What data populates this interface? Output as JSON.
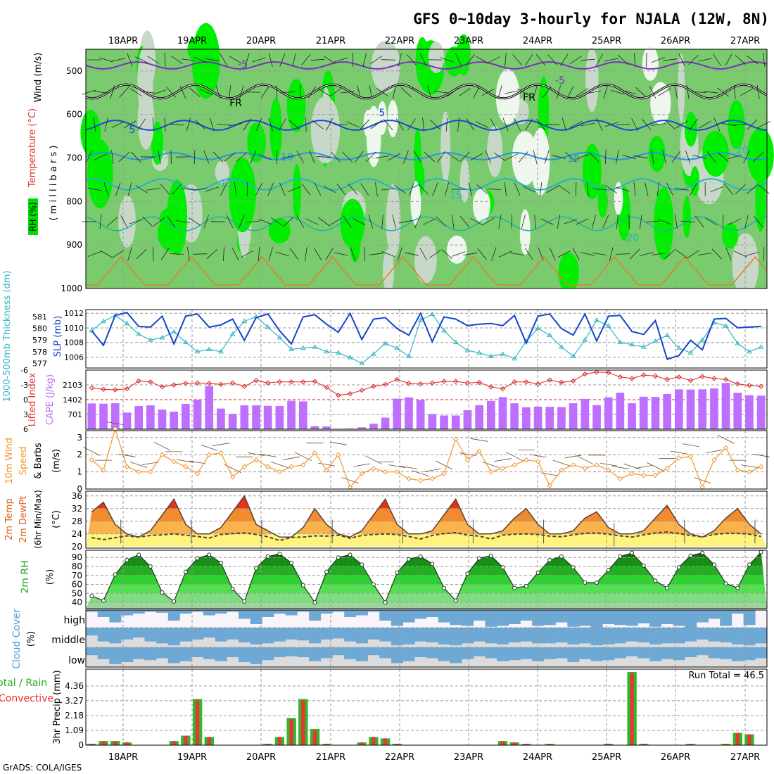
{
  "title": "GFS 0~10day 3-hourly for NJALA (12W, 8N)",
  "credit": "GrADS: COLA/IGES",
  "colors": {
    "grid": "#9a9a9a",
    "rh_light": "#c8d8c8",
    "rh_mid": "#7acb6e",
    "rh_high": "#00ee00",
    "precip_total": "#2db82d",
    "precip_conv": "#ee3333",
    "cloud": "#6ea8d4",
    "cloud_bg": "#dcdcdc",
    "cape": "#bf6fff",
    "li": "#dd2222",
    "slp": "#1446c8",
    "thick": "#33b6c4",
    "wind10": "#f0962a"
  },
  "chart_data": [
    {
      "type": "area",
      "panel": "upper-air",
      "ylabel_lines": [
        "Wind (m/s)",
        "Temperature (°C)",
        "RH (%)"
      ],
      "ylabel2": "( m i l l i b a r s )",
      "dates": [
        "18APR",
        "19APR",
        "20APR",
        "21APR",
        "22APR",
        "23APR",
        "24APR",
        "25APR",
        "26APR",
        "27APR"
      ],
      "y_ticks": [
        "500",
        "600",
        "700",
        "800",
        "900",
        "1000"
      ],
      "ylim": [
        450,
        1000
      ],
      "contour_labels": [
        "-5",
        "-5",
        "FR",
        "FR",
        "5",
        "5",
        "10",
        "10",
        "15",
        "15",
        "20",
        "20"
      ]
    },
    {
      "type": "line",
      "panel": "slp-thickness",
      "ylabel_left": "1000-500mb Thickness (dm)",
      "ylabel_right": "SLP (mb)",
      "left_ticks": [
        "581",
        "580",
        "579",
        "578",
        "577"
      ],
      "right_ticks": [
        "1012",
        "1010",
        "1008",
        "1006"
      ],
      "slp_ylim": [
        1004.5,
        1012.5
      ],
      "thick_ylim": [
        576.6,
        581.6
      ],
      "series": [
        {
          "name": "SLP",
          "values": [
            1009.6,
            1007.6,
            1011.7,
            1012.1,
            1010.2,
            1010.1,
            1011.6,
            1007.8,
            1011.6,
            1011.9,
            1010.1,
            1010.4,
            1011.2,
            1008.3,
            1011.4,
            1011.9,
            1009.6,
            1007.8,
            1011.5,
            1011.8,
            1010.5,
            1009.4,
            1012.0,
            1008.4,
            1011.2,
            1011.4,
            1009.9,
            1009.0,
            1012.0,
            1008.1,
            1011.5,
            1011.2,
            1010.3,
            1010.5,
            1010.6,
            1010.3,
            1011.7,
            1007.9,
            1011.6,
            1011.9,
            1009.9,
            1009.0,
            1011.9,
            1008.2,
            1011.6,
            1011.7,
            1009.5,
            1009.1,
            1011.0,
            1005.7,
            1006.2,
            1008.3,
            1007.0,
            1011.2,
            1011.3,
            1010.0,
            1010.1,
            1010.2
          ]
        },
        {
          "name": "Thickness",
          "values": [
            579.8,
            580.6,
            581.1,
            580.4,
            579.5,
            579.0,
            579.2,
            579.7,
            578.8,
            578.0,
            578.2,
            578.0,
            579.5,
            580.6,
            581.0,
            580.1,
            579.2,
            578.2,
            578.3,
            578.4,
            578.0,
            577.9,
            577.5,
            577.0,
            577.8,
            578.7,
            578.3,
            577.6,
            580.7,
            581.2,
            579.8,
            578.8,
            578.1,
            577.9,
            577.6,
            577.8,
            577.4,
            578.9,
            580.0,
            579.4,
            578.4,
            577.6,
            579.0,
            580.7,
            580.2,
            578.8,
            578.6,
            578.4,
            578.9,
            579.4,
            578.3,
            577.9,
            579.0,
            580.5,
            580.2,
            578.7,
            578.0,
            578.4
          ]
        }
      ]
    },
    {
      "type": "bar",
      "panel": "cape-li",
      "ylabel_left": "Lifted Index",
      "ylabel_right": "CAPE (J/kg)",
      "left_ticks": [
        "-6",
        "-3",
        "0",
        "3",
        "6"
      ],
      "right_ticks": [
        "2103",
        "1402",
        "701"
      ],
      "cape_ylim": [
        0,
        2800
      ],
      "li_ylim": [
        6,
        -6
      ],
      "series": [
        {
          "name": "CAPE",
          "values": [
            1220,
            1210,
            1230,
            790,
            1100,
            1130,
            930,
            830,
            1200,
            1400,
            2040,
            980,
            730,
            1130,
            1130,
            1110,
            1100,
            1350,
            1320,
            140,
            130,
            0,
            30,
            90,
            260,
            550,
            1450,
            1510,
            1380,
            720,
            650,
            650,
            900,
            1140,
            1340,
            1520,
            1230,
            1040,
            1070,
            1060,
            1050,
            1230,
            1440,
            1140,
            1510,
            1730,
            1230,
            1540,
            1530,
            1670,
            1890,
            1880,
            1890,
            1930,
            2190,
            1730,
            1610,
            1590
          ]
        },
        {
          "name": "Lifted Index",
          "values": [
            -2.4,
            -2.1,
            -2.0,
            -2.2,
            -3.8,
            -3.6,
            -2.6,
            -3.0,
            -3.3,
            -3.4,
            -3.3,
            -3.1,
            -3.4,
            -2.7,
            -3.9,
            -3.4,
            -3.6,
            -3.6,
            -3.6,
            -3.7,
            -2.5,
            -0.9,
            -1.2,
            -1.9,
            -2.7,
            -3.1,
            -4.1,
            -3.3,
            -3.2,
            -3.4,
            -3.7,
            -3.7,
            -3.4,
            -3.5,
            -2.6,
            -2.2,
            -3.6,
            -3.6,
            -3.2,
            -4.0,
            -3.5,
            -3.8,
            -5.2,
            -5.6,
            -5.5,
            -4.6,
            -4.3,
            -5.0,
            -4.8,
            -4.1,
            -4.6,
            -3.9,
            -4.7,
            -4.3,
            -4.1,
            -3.2,
            -2.9,
            -2.7
          ]
        }
      ]
    },
    {
      "type": "line",
      "panel": "wind10m",
      "ylabel_lines": [
        "10m Wind",
        "Speed",
        "& Barbs"
      ],
      "ylabel_unit": "(m/s)",
      "y_ticks": [
        "0",
        "1",
        "2",
        "3"
      ],
      "ylim": [
        0,
        3.4
      ],
      "series": [
        {
          "name": "10m Wind Speed",
          "values": [
            1.7,
            1.1,
            3.5,
            1.3,
            1.0,
            1.0,
            2.0,
            1.6,
            1.3,
            0.9,
            2.0,
            2.1,
            0.7,
            1.3,
            1.7,
            1.3,
            1.0,
            1.3,
            1.4,
            2.1,
            1.1,
            2.0,
            0.1,
            0.9,
            1.2,
            1.0,
            1.0,
            0.6,
            0.5,
            0.6,
            0.9,
            2.9,
            1.7,
            2.2,
            1.0,
            1.2,
            1.4,
            1.7,
            1.6,
            0.2,
            1.1,
            1.4,
            1.2,
            1.4,
            1.1,
            0.6,
            0.9,
            0.8,
            0.8,
            1.2,
            1.8,
            1.9,
            0.1,
            1.7,
            2.4,
            1.1,
            1.0,
            1.3
          ]
        }
      ]
    },
    {
      "type": "area",
      "panel": "temp2m",
      "ylabel_lines": [
        "2m Temp",
        "2m DewPt",
        "(6hr Min/Max)"
      ],
      "ylabel_unit": "(°C)",
      "y_ticks": [
        "20",
        "24",
        "28",
        "32",
        "36"
      ],
      "ylim": [
        19.5,
        37.5
      ],
      "series": [
        {
          "name": "2m Temp",
          "values": [
            31,
            34,
            27,
            24,
            23,
            25,
            30,
            35,
            27,
            24,
            24,
            26,
            31,
            36,
            27,
            25,
            23,
            23,
            26,
            32,
            27,
            24,
            23,
            25,
            30,
            35,
            27,
            24,
            24,
            25,
            30,
            35,
            27,
            24,
            24,
            25,
            29,
            32,
            27,
            24,
            24,
            25,
            29,
            31,
            26,
            24,
            24,
            25,
            29,
            33,
            27,
            24,
            23,
            25,
            29,
            32,
            27,
            24
          ]
        },
        {
          "name": "2m DewPt",
          "values": [
            22.8,
            22.2,
            22.8,
            23.4,
            23.0,
            23.5,
            23.7,
            24.0,
            23.6,
            23.2,
            22.7,
            23.8,
            24.1,
            24.3,
            23.8,
            23.1,
            21.9,
            22.9,
            23.0,
            23.4,
            23.3,
            23.6,
            22.6,
            23.5,
            23.8,
            24.0,
            23.8,
            23.2,
            22.4,
            23.5,
            24.1,
            24.4,
            23.6,
            23.3,
            22.4,
            23.6,
            23.9,
            24.0,
            23.8,
            23.3,
            23.1,
            23.7,
            24.2,
            24.3,
            23.9,
            23.4,
            23.0,
            23.7,
            24.3,
            24.6,
            24.1,
            23.5,
            23.1,
            23.8,
            24.2,
            24.2,
            23.9,
            23.2
          ]
        }
      ]
    },
    {
      "type": "area",
      "panel": "rh2m",
      "ylabel": "2m RH",
      "ylabel_unit": "(%)",
      "y_ticks": [
        "40",
        "50",
        "60",
        "70",
        "80",
        "90"
      ],
      "ylim": [
        33,
        98
      ],
      "series": [
        {
          "name": "2m RH",
          "values": [
            47,
            42,
            71,
            87,
            93,
            80,
            51,
            41,
            74,
            89,
            93,
            84,
            55,
            41,
            78,
            91,
            94,
            84,
            59,
            40,
            74,
            90,
            93,
            82,
            60,
            40,
            73,
            88,
            91,
            83,
            56,
            42,
            72,
            89,
            92,
            79,
            56,
            58,
            73,
            87,
            91,
            79,
            62,
            62,
            76,
            91,
            95,
            81,
            64,
            56,
            79,
            92,
            95,
            82,
            61,
            56,
            82,
            96
          ]
        }
      ]
    },
    {
      "type": "bar",
      "panel": "cloud",
      "ylabel": "Cloud Cover",
      "ylabel_unit": "(%)",
      "row_labels": [
        "high",
        "middle",
        "low"
      ],
      "series": [
        {
          "name": "high",
          "values": [
            10,
            40,
            70,
            30,
            20,
            10,
            15,
            60,
            20,
            10,
            30,
            20,
            10,
            50,
            80,
            40,
            20,
            30,
            10,
            60,
            20,
            10,
            40,
            30,
            10,
            60,
            90,
            70,
            50,
            40,
            70,
            85,
            90,
            60,
            95,
            90,
            80,
            60,
            90,
            85,
            70,
            95,
            90,
            100,
            80,
            85,
            90,
            75,
            95,
            80,
            90,
            100,
            70,
            50,
            90,
            20,
            85,
            0
          ]
        },
        {
          "name": "middle",
          "values": [
            40,
            70,
            80,
            60,
            50,
            70,
            80,
            90,
            70,
            60,
            50,
            70,
            60,
            75,
            85,
            80,
            70,
            60,
            65,
            80,
            60,
            55,
            70,
            80,
            60,
            70,
            90,
            85,
            70,
            75,
            85,
            90,
            80,
            70,
            80,
            85,
            75,
            70,
            80,
            80,
            75,
            85,
            80,
            90,
            85,
            80,
            70,
            75,
            85,
            80,
            80,
            70,
            60,
            70,
            75,
            85,
            90,
            80
          ]
        },
        {
          "name": "low",
          "values": [
            40,
            60,
            85,
            75,
            60,
            65,
            55,
            80,
            70,
            50,
            60,
            70,
            50,
            75,
            85,
            65,
            50,
            45,
            50,
            70,
            55,
            40,
            60,
            70,
            40,
            55,
            80,
            70,
            50,
            55,
            70,
            80,
            60,
            45,
            55,
            70,
            65,
            60,
            70,
            60,
            55,
            75,
            60,
            70,
            65,
            55,
            45,
            55,
            70,
            60,
            65,
            50,
            40,
            55,
            60,
            70,
            65,
            55
          ]
        }
      ]
    },
    {
      "type": "bar",
      "panel": "precip",
      "ylabel_left": [
        "Total / Rain",
        "Convective"
      ],
      "ylabel": "3hr Precip (mm)",
      "y_ticks": [
        "0",
        "1.09",
        "2.18",
        "3.27",
        "4.36"
      ],
      "ylim": [
        0,
        5.6
      ],
      "run_total": "Run Total = 46.5",
      "series": [
        {
          "name": "Total",
          "values": [
            0.1,
            0.3,
            0.3,
            0.2,
            0,
            0,
            0,
            0.3,
            0.7,
            3.4,
            0.6,
            0,
            0,
            0,
            0,
            0.1,
            0.6,
            2.0,
            3.4,
            1.2,
            0.1,
            0,
            0,
            0.2,
            0.6,
            0.5,
            0.1,
            0,
            0,
            0,
            0,
            0,
            0,
            0,
            0,
            0.3,
            0.2,
            0.1,
            0,
            0.1,
            0,
            0,
            0,
            0,
            0.1,
            0,
            5.4,
            0.1,
            0,
            0,
            0,
            0.1,
            0,
            0,
            0.1,
            0.9,
            0.8,
            0
          ]
        },
        {
          "name": "Convective",
          "values": [
            0.1,
            0.3,
            0.3,
            0.2,
            0,
            0,
            0,
            0.3,
            0.7,
            3.3,
            0.6,
            0,
            0,
            0,
            0,
            0.1,
            0.6,
            1.9,
            3.3,
            1.1,
            0.1,
            0,
            0,
            0.2,
            0.6,
            0.5,
            0.1,
            0,
            0,
            0,
            0,
            0,
            0,
            0,
            0,
            0.3,
            0.2,
            0.1,
            0,
            0.1,
            0,
            0,
            0,
            0,
            0.1,
            0,
            5.3,
            0.1,
            0,
            0,
            0,
            0.1,
            0,
            0,
            0.1,
            0.9,
            0.8,
            0
          ]
        }
      ]
    }
  ]
}
